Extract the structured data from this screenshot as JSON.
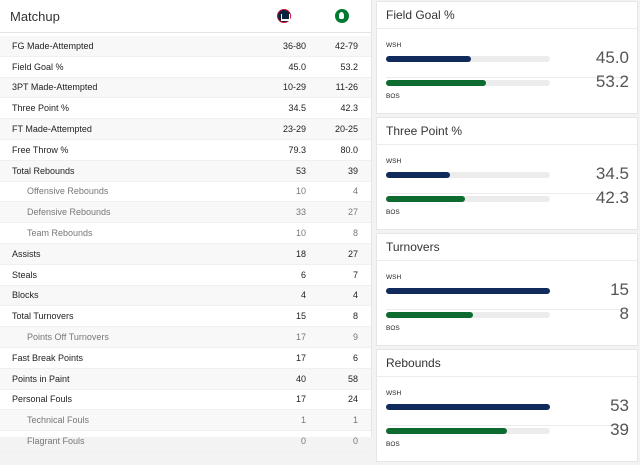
{
  "matchup": {
    "title": "Matchup",
    "home_team_icon": "wizards-logo",
    "away_team_icon": "celtics-logo",
    "rows": [
      {
        "label": "FG Made-Attempted",
        "wsh": "36-80",
        "bos": "42-79",
        "sub": false
      },
      {
        "label": "Field Goal %",
        "wsh": "45.0",
        "bos": "53.2",
        "sub": false
      },
      {
        "label": "3PT Made-Attempted",
        "wsh": "10-29",
        "bos": "11-26",
        "sub": false
      },
      {
        "label": "Three Point %",
        "wsh": "34.5",
        "bos": "42.3",
        "sub": false
      },
      {
        "label": "FT Made-Attempted",
        "wsh": "23-29",
        "bos": "20-25",
        "sub": false
      },
      {
        "label": "Free Throw %",
        "wsh": "79.3",
        "bos": "80.0",
        "sub": false
      },
      {
        "label": "Total Rebounds",
        "wsh": "53",
        "bos": "39",
        "sub": false
      },
      {
        "label": "Offensive Rebounds",
        "wsh": "10",
        "bos": "4",
        "sub": true
      },
      {
        "label": "Defensive Rebounds",
        "wsh": "33",
        "bos": "27",
        "sub": true
      },
      {
        "label": "Team Rebounds",
        "wsh": "10",
        "bos": "8",
        "sub": true
      },
      {
        "label": "Assists",
        "wsh": "18",
        "bos": "27",
        "sub": false
      },
      {
        "label": "Steals",
        "wsh": "6",
        "bos": "7",
        "sub": false
      },
      {
        "label": "Blocks",
        "wsh": "4",
        "bos": "4",
        "sub": false
      },
      {
        "label": "Total Turnovers",
        "wsh": "15",
        "bos": "8",
        "sub": false
      },
      {
        "label": "Points Off Turnovers",
        "wsh": "17",
        "bos": "9",
        "sub": true
      },
      {
        "label": "Fast Break Points",
        "wsh": "17",
        "bos": "6",
        "sub": false
      },
      {
        "label": "Points in Paint",
        "wsh": "40",
        "bos": "58",
        "sub": false
      },
      {
        "label": "Personal Fouls",
        "wsh": "17",
        "bos": "24",
        "sub": false
      },
      {
        "label": "Technical Fouls",
        "wsh": "1",
        "bos": "1",
        "sub": true
      },
      {
        "label": "Flagrant Fouls",
        "wsh": "0",
        "bos": "0",
        "sub": true
      }
    ]
  },
  "colors": {
    "wsh": "#102a5c",
    "bos": "#0d6b2f",
    "track": "#ececec"
  },
  "cards": [
    {
      "title": "Field Goal %",
      "wsh_label": "WSH",
      "bos_label": "BOS",
      "wsh_value": "45.0",
      "bos_value": "53.2",
      "wsh_fill": 0.52,
      "bos_fill": 0.61
    },
    {
      "title": "Three Point %",
      "wsh_label": "WSH",
      "bos_label": "BOS",
      "wsh_value": "34.5",
      "bos_value": "42.3",
      "wsh_fill": 0.39,
      "bos_fill": 0.48
    },
    {
      "title": "Turnovers",
      "wsh_label": "WSH",
      "bos_label": "BOS",
      "wsh_value": "15",
      "bos_value": "8",
      "wsh_fill": 1.0,
      "bos_fill": 0.53
    },
    {
      "title": "Rebounds",
      "wsh_label": "WSH",
      "bos_label": "BOS",
      "wsh_value": "53",
      "bos_value": "39",
      "wsh_fill": 1.0,
      "bos_fill": 0.74
    }
  ]
}
